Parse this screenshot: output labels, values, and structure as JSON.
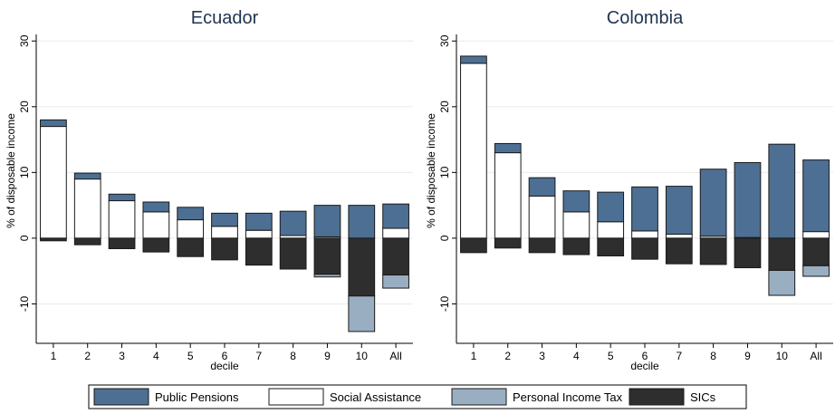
{
  "colors": {
    "public_pensions": "#4d6f93",
    "social_assistance": "#ffffff",
    "personal_income_tax": "#9aaec2",
    "sics": "#2e2e2e"
  },
  "legend": [
    {
      "key": "public_pensions",
      "label": "Public Pensions"
    },
    {
      "key": "social_assistance",
      "label": "Social Assistance"
    },
    {
      "key": "personal_income_tax",
      "label": "Personal Income Tax"
    },
    {
      "key": "sics",
      "label": "SICs"
    }
  ],
  "chart_data": [
    {
      "type": "bar",
      "stacked": true,
      "title": "Ecuador",
      "xlabel": "decile",
      "ylabel": "% of disposable income",
      "ylim": [
        -16,
        31
      ],
      "yticks": [
        -10,
        0,
        10,
        20,
        30
      ],
      "grid": true,
      "categories": [
        "1",
        "2",
        "3",
        "4",
        "5",
        "6",
        "7",
        "8",
        "9",
        "10",
        "All"
      ],
      "series": [
        {
          "name": "Social Assistance",
          "key": "social_assistance",
          "values": [
            17,
            9,
            5.7,
            4,
            2.8,
            1.8,
            1.2,
            0.4,
            0.2,
            0,
            1.5
          ]
        },
        {
          "name": "Public Pensions",
          "key": "public_pensions",
          "values": [
            1,
            0.9,
            1,
            1.5,
            1.9,
            2,
            2.6,
            3.7,
            4.8,
            5,
            3.7
          ]
        },
        {
          "name": "SICs",
          "key": "sics",
          "values": [
            -0.4,
            -1,
            -1.6,
            -2.1,
            -2.8,
            -3.3,
            -4.1,
            -4.7,
            -5.5,
            -8.8,
            -5.6
          ]
        },
        {
          "name": "Personal Income Tax",
          "key": "personal_income_tax",
          "values": [
            0,
            0,
            0,
            0,
            0,
            0,
            0,
            0,
            -0.4,
            -5.4,
            -2
          ]
        }
      ]
    },
    {
      "type": "bar",
      "stacked": true,
      "title": "Colombia",
      "xlabel": "decile",
      "ylabel": "% of disposable income",
      "ylim": [
        -16,
        31
      ],
      "yticks": [
        -10,
        0,
        10,
        20,
        30
      ],
      "grid": true,
      "categories": [
        "1",
        "2",
        "3",
        "4",
        "5",
        "6",
        "7",
        "8",
        "9",
        "10",
        "All"
      ],
      "series": [
        {
          "name": "Social Assistance",
          "key": "social_assistance",
          "values": [
            26.6,
            13,
            6.4,
            4,
            2.5,
            1.1,
            0.6,
            0.3,
            0.1,
            0,
            1
          ]
        },
        {
          "name": "Public Pensions",
          "key": "public_pensions",
          "values": [
            1.1,
            1.4,
            2.8,
            3.2,
            4.5,
            6.7,
            7.3,
            10.2,
            11.4,
            14.3,
            10.9
          ]
        },
        {
          "name": "SICs",
          "key": "sics",
          "values": [
            -2.2,
            -1.5,
            -2.2,
            -2.5,
            -2.7,
            -3.2,
            -3.9,
            -4,
            -4.5,
            -4.9,
            -4.2
          ]
        },
        {
          "name": "Personal Income Tax",
          "key": "personal_income_tax",
          "values": [
            0,
            0,
            0,
            0,
            0,
            0,
            0,
            0,
            0,
            -3.8,
            -1.6
          ]
        }
      ]
    }
  ]
}
